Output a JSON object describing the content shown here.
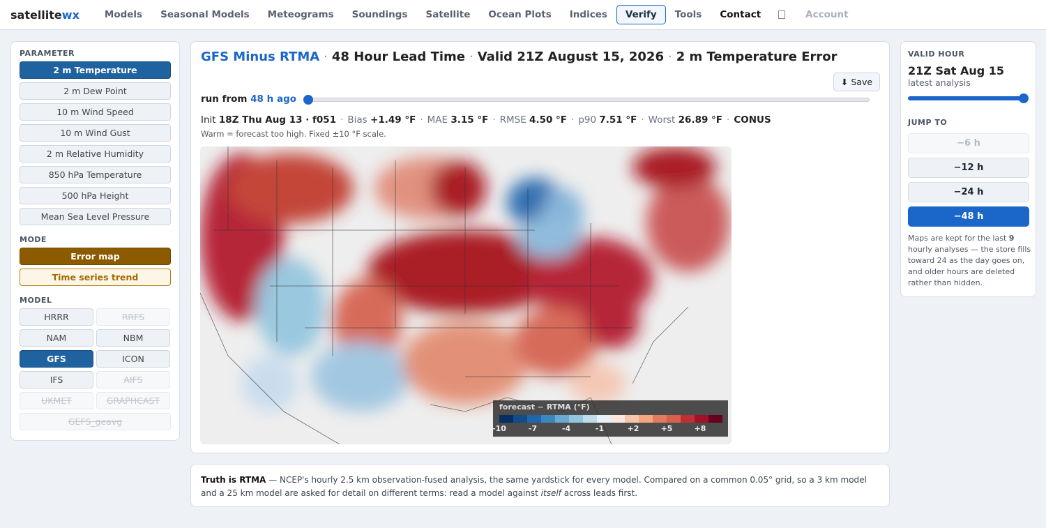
{
  "nav": {
    "brand": [
      "satellite",
      "wx"
    ],
    "items": [
      "Models",
      "Seasonal Models",
      "Meteograms",
      "Soundings",
      "Satellite",
      "Ocean Plots",
      "Indices",
      "Verify",
      "Tools",
      "Contact"
    ],
    "account": "Account"
  },
  "sidebar": {
    "parameter": {
      "label": "PARAMETER",
      "items": [
        "2 m Temperature",
        "2 m Dew Point",
        "10 m Wind Speed",
        "10 m Wind Gust",
        "2 m Relative Humidity",
        "850 hPa Temperature",
        "500 hPa Height",
        "Mean Sea Level Pressure"
      ]
    },
    "mode": {
      "label": "MODE",
      "items": [
        "Error map",
        "Time series trend"
      ]
    },
    "model": {
      "label": "MODEL",
      "items": [
        "HRRR",
        "RRFS",
        "NAM",
        "NBM",
        "GFS",
        "ICON",
        "IFS",
        "AIFS",
        "UKMET",
        "GRAPHCAST",
        "GEFS_geavg"
      ]
    }
  },
  "main": {
    "title": [
      "GFS Minus RTMA",
      "48 Hour Lead Time",
      "Valid 21Z August 15, 2026",
      "2 m Temperature Error"
    ],
    "separator": "·",
    "save": "⬇ Save",
    "run_from": [
      "run from",
      "48 h ago"
    ],
    "stats": [
      {
        "label": "Init",
        "value": "18Z Thu Aug 13 · f051"
      },
      {
        "label": "Bias",
        "value": "+1.49 °F"
      },
      {
        "label": "MAE",
        "value": "3.15 °F"
      },
      {
        "label": "RMSE",
        "value": "4.50 °F"
      },
      {
        "label": "p90",
        "value": "7.51 °F"
      },
      {
        "label": "Worst",
        "value": "26.89 °F"
      }
    ],
    "region": "CONUS",
    "note": "Warm = forecast too high. Fixed ±10 °F scale.",
    "colorbar": {
      "title": "forecast − RTMA (°F)",
      "ticks": [
        "-10",
        "-7",
        "-4",
        "-1",
        "+2",
        "+5",
        "+8"
      ]
    }
  },
  "right": {
    "label": "VALID HOUR",
    "hour": "21Z Sat Aug 15",
    "sub": "latest analysis",
    "jump_label": "JUMP TO",
    "jumps": [
      "−6 h",
      "−12 h",
      "−24 h",
      "−48 h"
    ],
    "note": [
      "Maps are kept for the last ",
      "9",
      " hourly analyses — the store fills toward 24 as the day goes on, and older hours are deleted rather than hidden."
    ]
  },
  "footer": [
    "Truth is RTMA",
    " — NCEP's hourly 2.5 km observation-fused analysis, the same yardstick for every model. Compared on a common 0.05° grid, so a 3 km model and a 25 km model are asked for detail on different terms: read a model against ",
    "itself",
    " across leads first."
  ]
}
